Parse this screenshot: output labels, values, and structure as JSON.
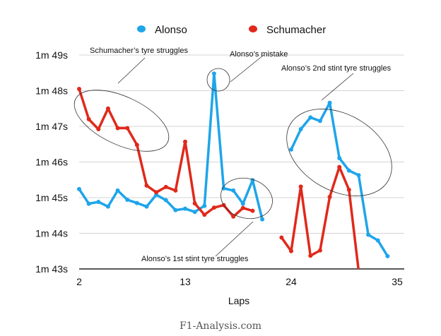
{
  "chart_data": {
    "type": "line",
    "title": "",
    "xlabel": "Laps",
    "ylabel": "",
    "xlim": [
      2,
      35
    ],
    "ylim": [
      103,
      109
    ],
    "x_ticks": [
      2,
      13,
      24,
      35
    ],
    "y_ticks": [
      103,
      104,
      105,
      106,
      107,
      108,
      109
    ],
    "y_tick_labels": [
      "1m 43s",
      "1m 44s",
      "1m 45s",
      "1m 46s",
      "1m 47s",
      "1m 48s",
      "1m 49s"
    ],
    "grid": "horizontal",
    "legend_position": "top",
    "series": [
      {
        "name": "Alonso",
        "color": "#1EA5EA",
        "segments": [
          {
            "x": [
              2,
              3,
              4,
              5,
              6,
              7,
              8,
              9,
              10,
              11,
              12,
              13,
              14,
              15,
              16,
              17,
              18,
              19,
              20,
              21
            ],
            "y": [
              105.24,
              104.83,
              104.88,
              104.75,
              105.2,
              104.94,
              104.85,
              104.75,
              105.08,
              104.93,
              104.65,
              104.69,
              104.6,
              104.77,
              108.48,
              105.26,
              105.2,
              104.83,
              105.49,
              104.39
            ]
          },
          {
            "x": [
              24,
              25,
              26,
              27,
              28,
              29,
              30,
              31,
              32,
              33,
              34
            ],
            "y": [
              106.35,
              106.92,
              107.25,
              107.15,
              107.66,
              106.11,
              105.76,
              105.63,
              103.96,
              103.8,
              103.36
            ]
          }
        ]
      },
      {
        "name": "Schumacher",
        "color": "#E0291B",
        "segments": [
          {
            "x": [
              2,
              3,
              4,
              5,
              6,
              7,
              8,
              9,
              10,
              11,
              12,
              13,
              14,
              15,
              16,
              17,
              18,
              19,
              20
            ],
            "y": [
              108.05,
              107.2,
              106.92,
              107.5,
              106.95,
              106.95,
              106.48,
              105.34,
              105.15,
              105.3,
              105.2,
              106.57,
              104.84,
              104.52,
              104.72,
              104.79,
              104.47,
              104.71,
              104.63
            ]
          },
          {
            "x": [
              23,
              24,
              25,
              26,
              27,
              28,
              29,
              30,
              31
            ],
            "y": [
              103.88,
              103.5,
              105.31,
              103.37,
              103.52,
              105.02,
              105.86,
              105.22,
              102.95
            ]
          }
        ]
      }
    ],
    "annotations": [
      "Schumacher’s tyre struggles",
      "Alonso’s mistake",
      "Alonso’s 2nd stint tyre struggles",
      "Alonso’s 1st stint tyre struggles"
    ]
  },
  "footer": "F1-Analysis.com"
}
